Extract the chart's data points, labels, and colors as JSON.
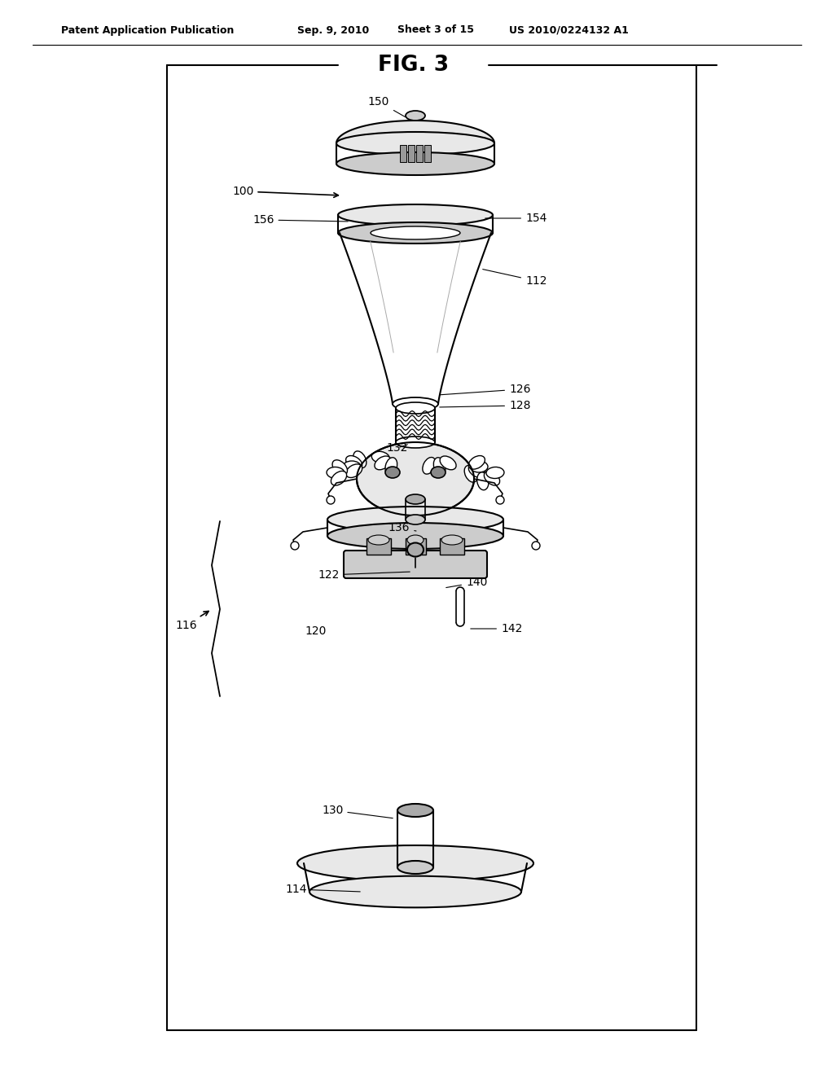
{
  "background_color": "#ffffff",
  "header_text": "Patent Application Publication",
  "header_date": "Sep. 9, 2010",
  "header_sheet": "Sheet 3 of 15",
  "header_patent": "US 2010/0224132 A1",
  "fig_label": "FIG. 3",
  "line_color": "#000000",
  "text_color": "#000000",
  "light_gray": "#e8e8e8",
  "mid_gray": "#cccccc",
  "dark_gray": "#aaaaaa"
}
